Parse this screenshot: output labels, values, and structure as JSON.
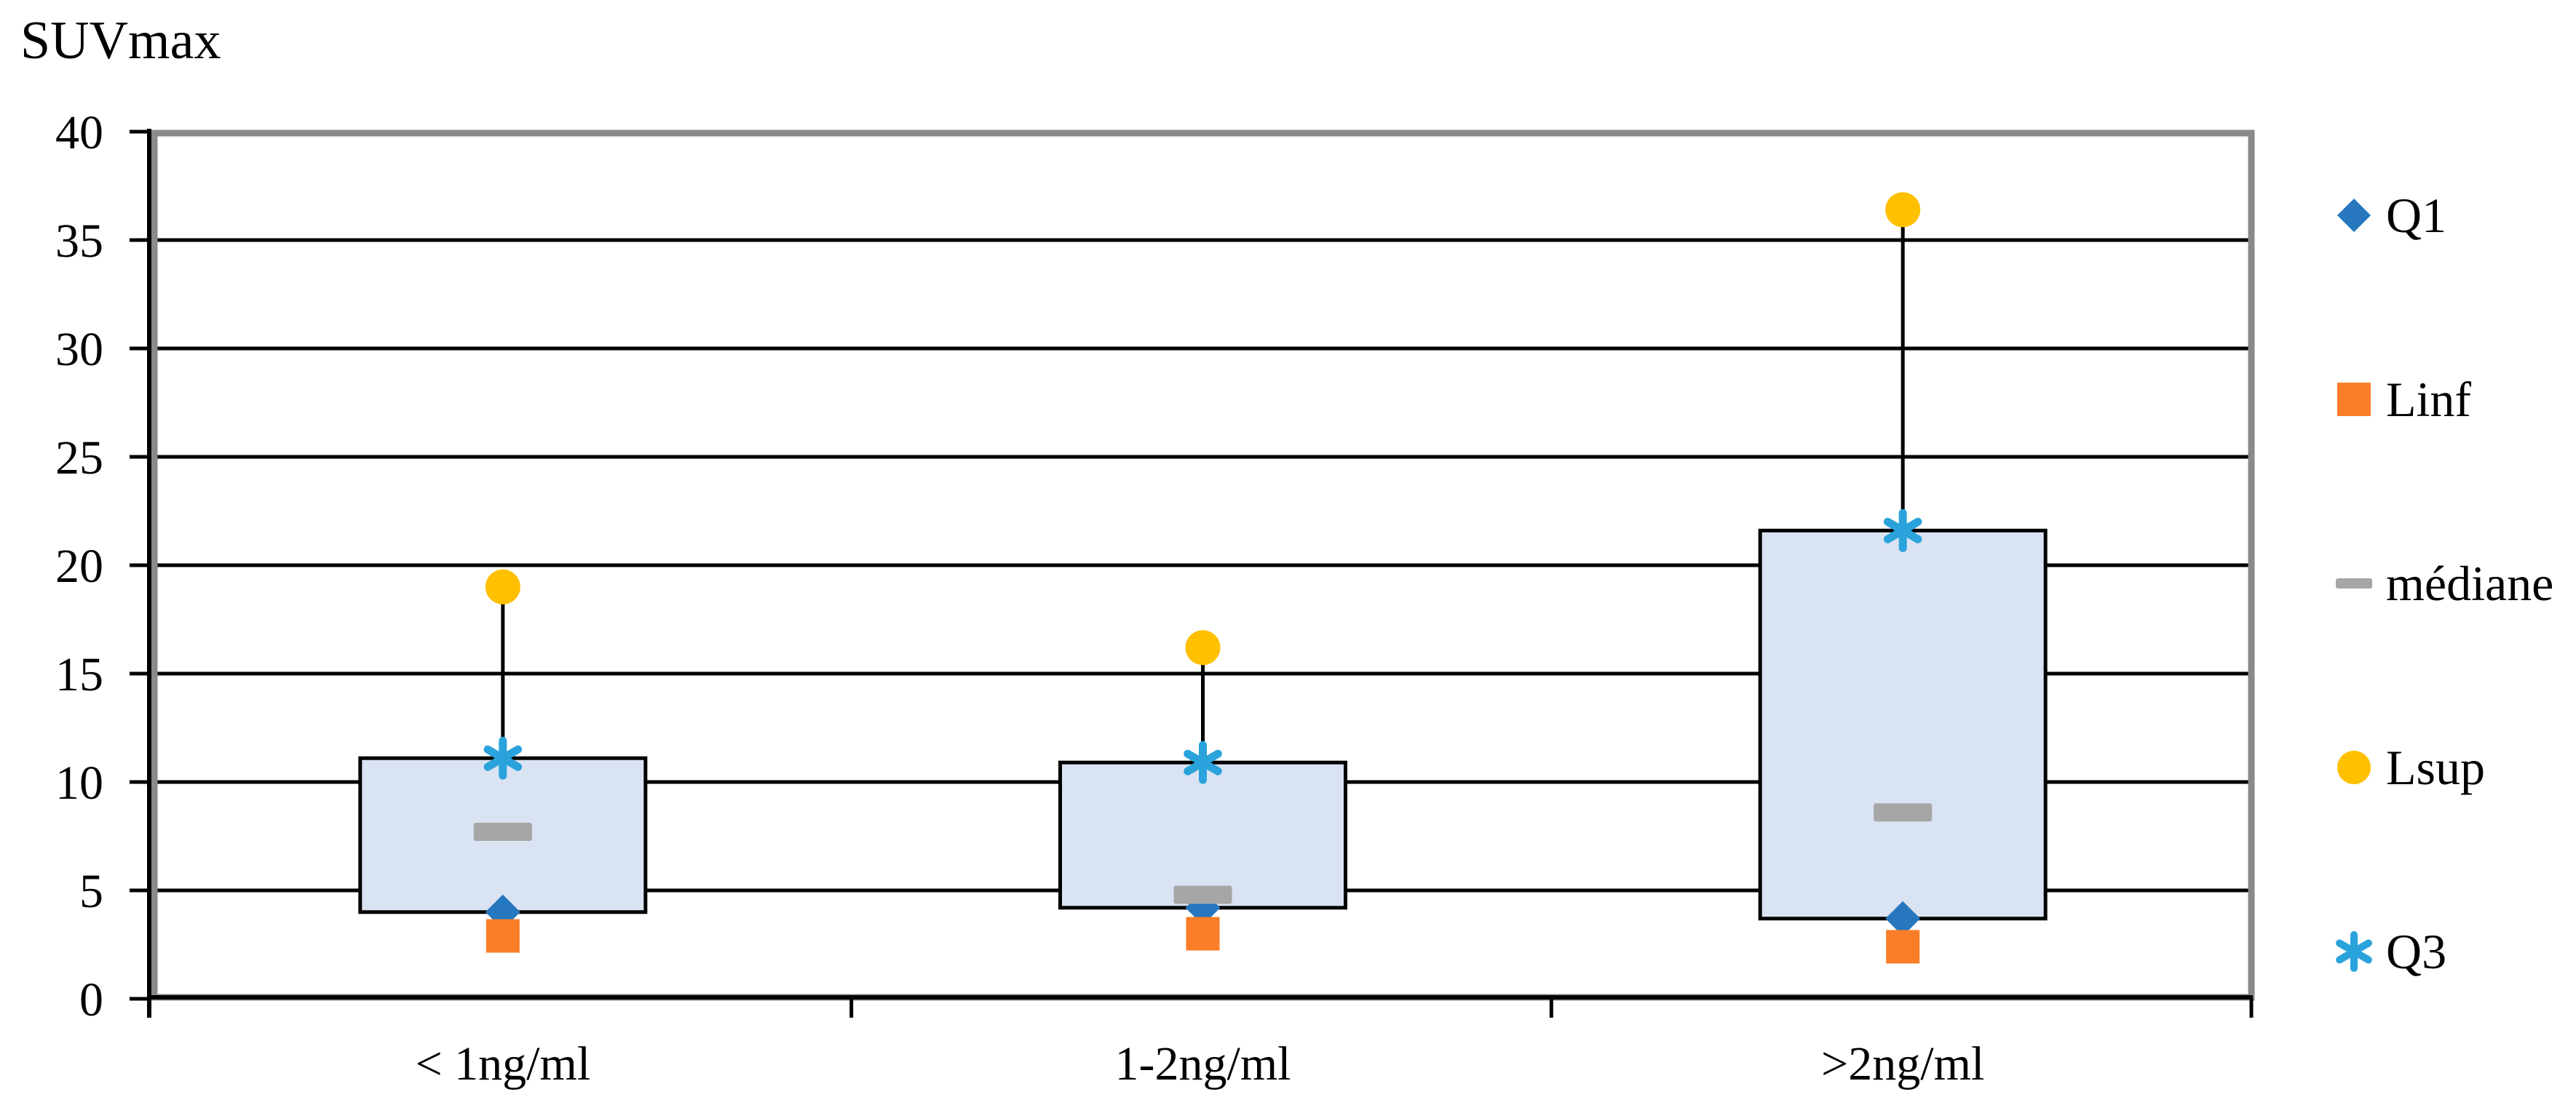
{
  "chart_data": {
    "type": "boxplot",
    "title": "SUVmax",
    "categories": [
      "< 1ng/ml",
      "1-2ng/ml",
      ">2ng/ml"
    ],
    "ylim": [
      0,
      40
    ],
    "yticks": [
      0,
      5,
      10,
      15,
      20,
      25,
      30,
      35,
      40
    ],
    "grid": true,
    "legend_position": "right",
    "axis_color": "#000000",
    "plot_border_color": "#8A8A8A",
    "background": "#FFFFFF",
    "box": {
      "fill": "#DAE3F2",
      "border": "#000000",
      "lower_series": "Q1",
      "upper_series": "Q3",
      "whisker_top_series": "Lsup"
    },
    "series": [
      {
        "name": "Q1",
        "marker": "diamond",
        "color": "#2777BE",
        "values": [
          4.0,
          4.2,
          3.7
        ]
      },
      {
        "name": "Linf",
        "marker": "square",
        "color": "#FA7D27",
        "values": [
          2.9,
          3.0,
          2.4
        ]
      },
      {
        "name": "médiane",
        "marker": "dash",
        "color": "#A6A6A6",
        "values": [
          7.7,
          4.8,
          8.6
        ]
      },
      {
        "name": "Lsup",
        "marker": "circle",
        "color": "#FFC000",
        "values": [
          19.0,
          16.2,
          36.4
        ]
      },
      {
        "name": "Q3",
        "marker": "asterisk",
        "color": "#2AA3DC",
        "values": [
          11.1,
          10.9,
          21.6
        ]
      }
    ]
  }
}
